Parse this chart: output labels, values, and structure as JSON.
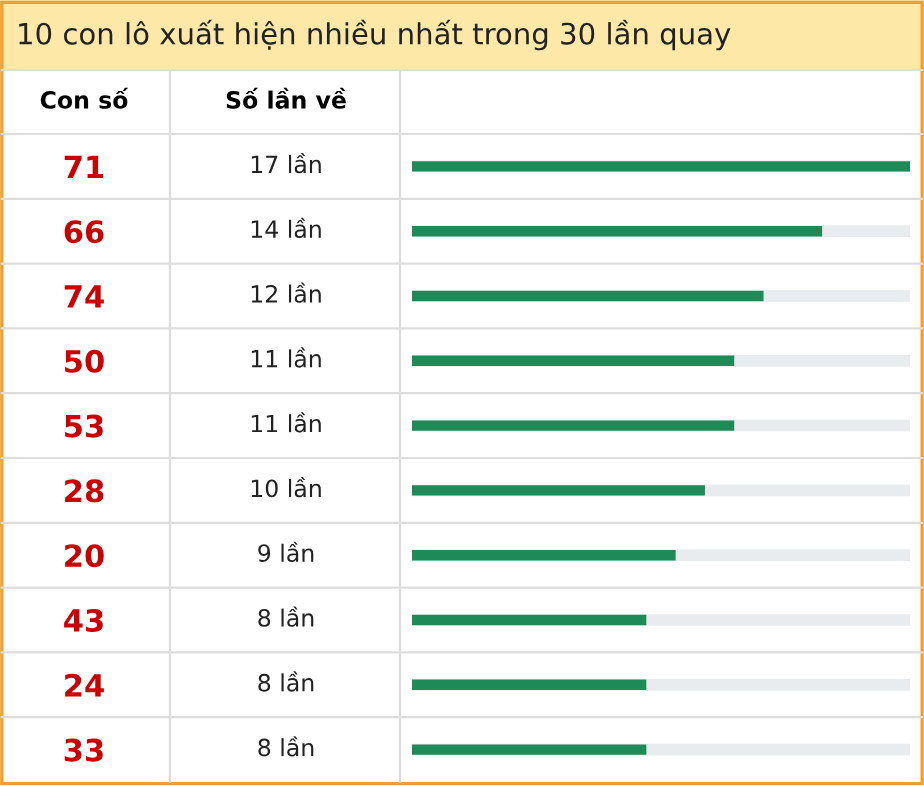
{
  "chart_data": {
    "type": "bar",
    "orientation": "horizontal",
    "title": "10 con lô xuất hiện nhiều nhất trong 30 lần quay",
    "ylabel": "Con số",
    "annotations": [
      "Số lần về"
    ],
    "categories": [
      "71",
      "66",
      "74",
      "50",
      "53",
      "28",
      "20",
      "43",
      "24",
      "33"
    ],
    "values": [
      17,
      14,
      12,
      11,
      11,
      10,
      9,
      8,
      8,
      8
    ],
    "value_labels": [
      "17 lần",
      "14 lần",
      "12 lần",
      "11 lần",
      "11 lần",
      "10 lần",
      "9 lần",
      "8 lần",
      "8 lần",
      "8 lần"
    ],
    "color": "#1e8a57",
    "grid": false,
    "legend": false
  }
}
